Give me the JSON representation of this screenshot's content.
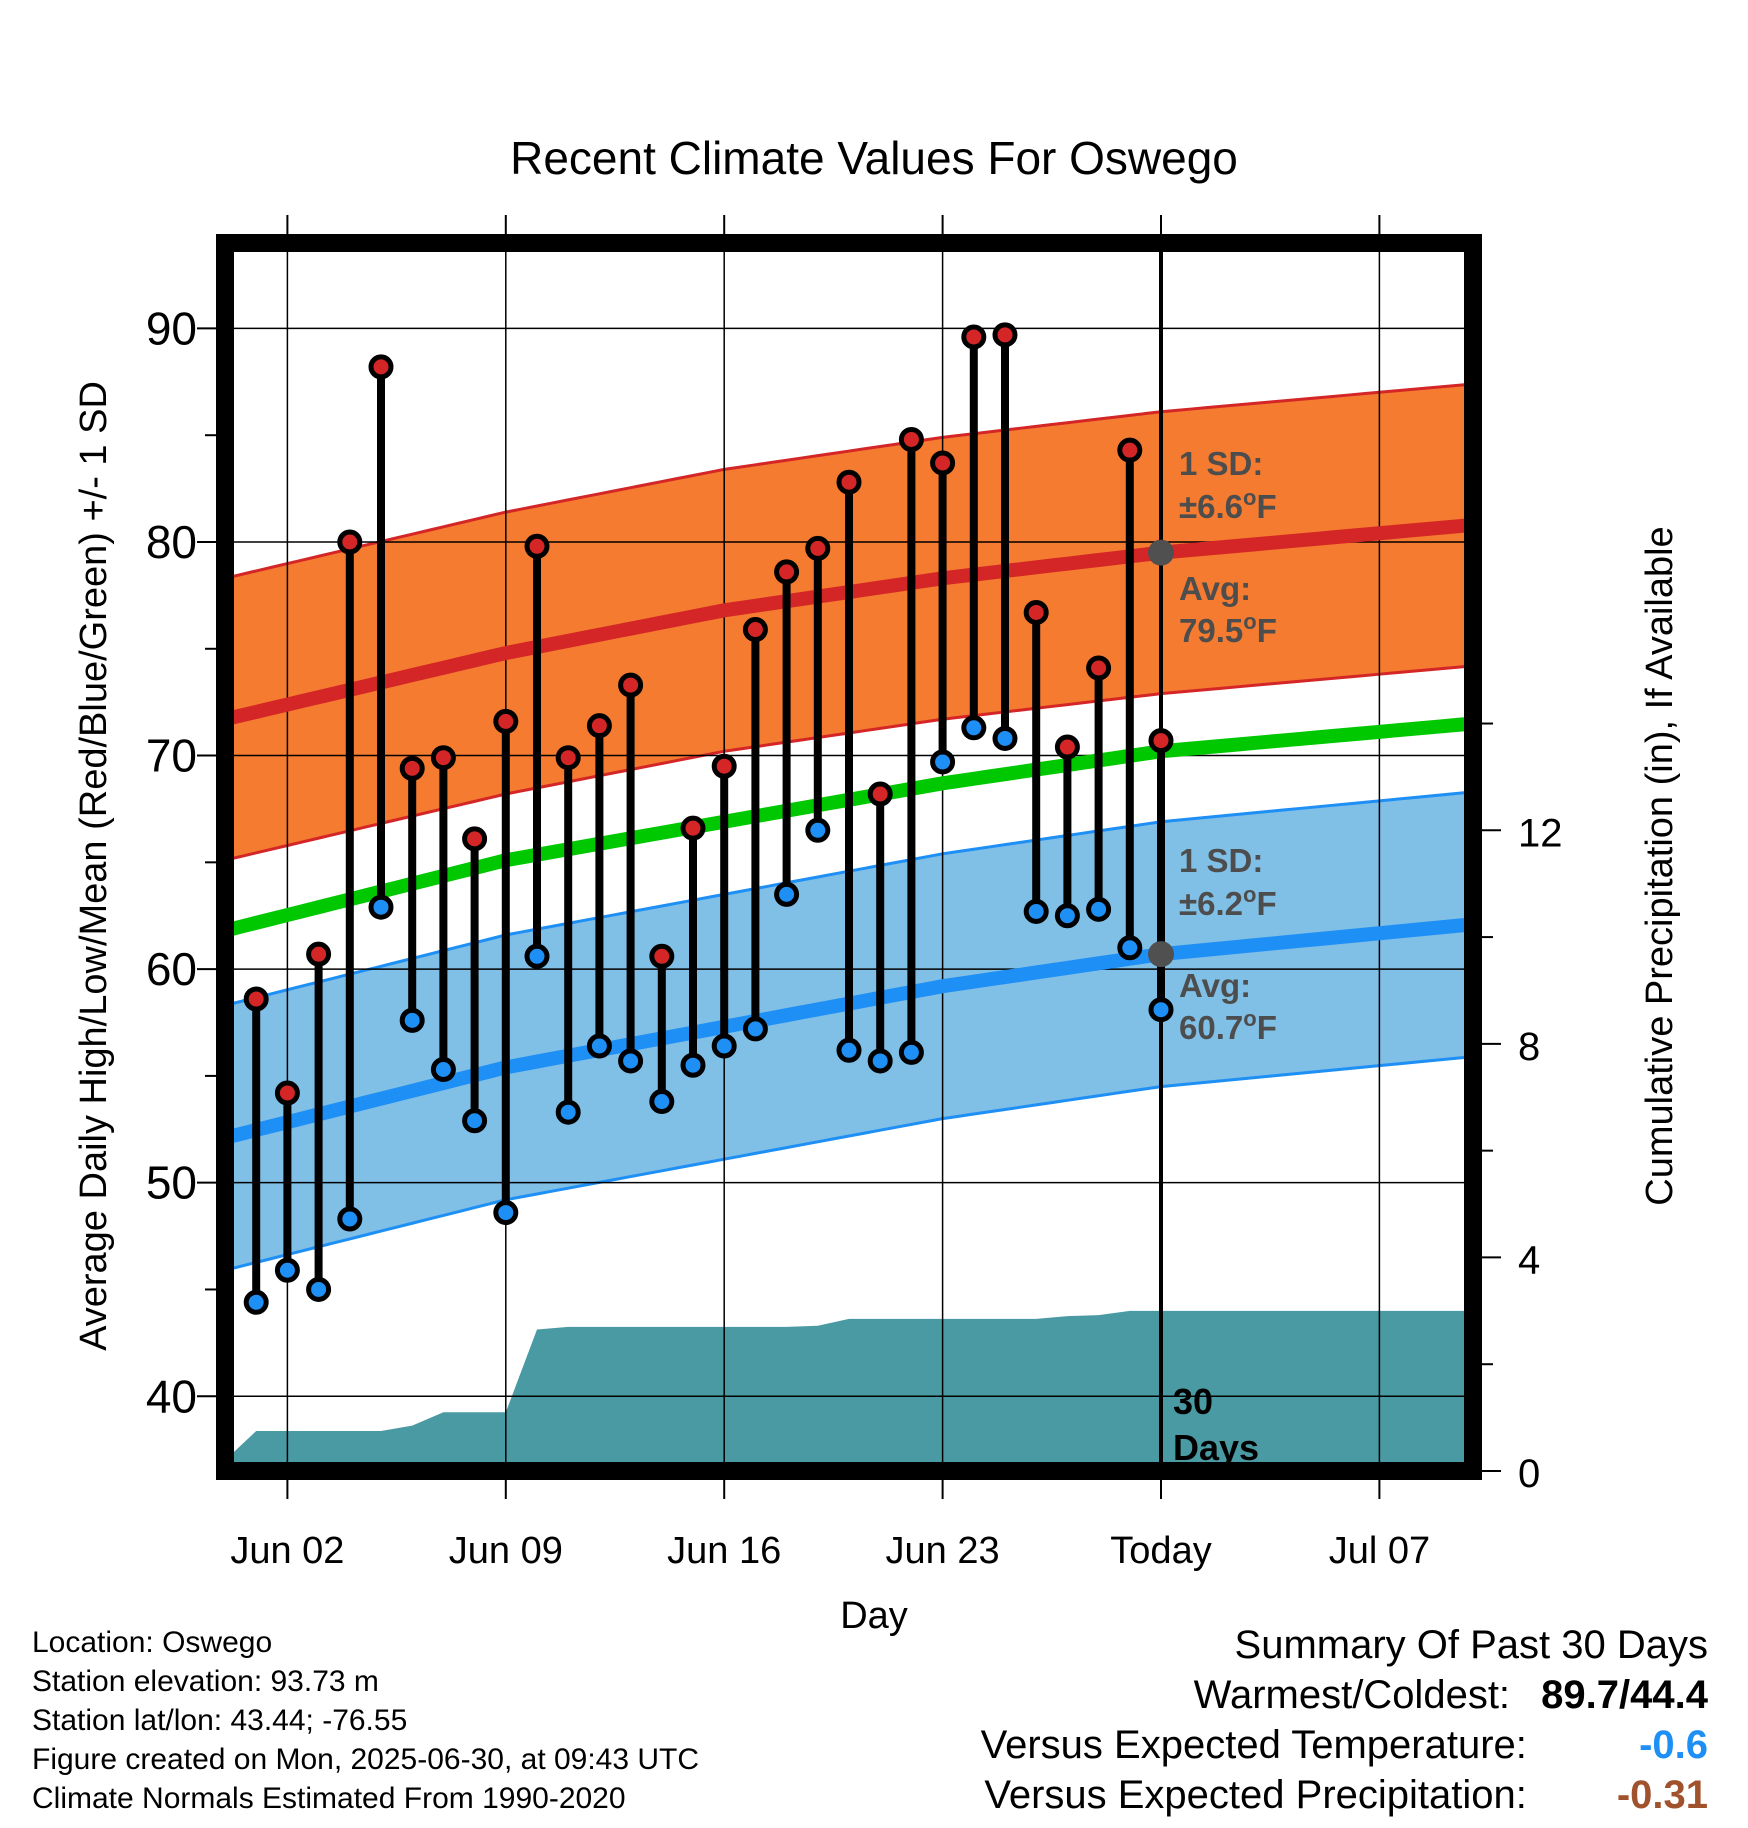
{
  "chart_data": {
    "type": "line",
    "title": "Recent Climate Values For Oswego",
    "xlabel": "Day",
    "ylabel_left": "Average Daily High/Low/Mean (Red/Blue/Green) +/- 1 SD",
    "ylabel_right": "Cumulative Precipitation (in), If Available",
    "x_tick_labels": [
      "Jun 02",
      "Jun 09",
      "Jun 16",
      "Jun 23",
      "Today",
      "Jul 07"
    ],
    "ylim_left": [
      36.5,
      94
    ],
    "y_ticks_left": [
      40,
      50,
      60,
      70,
      80,
      90
    ],
    "ylim_right": [
      0,
      23
    ],
    "y_ticks_right": [
      0,
      4,
      8,
      12
    ],
    "xlim_days": [
      "May 31",
      "Jul 10"
    ],
    "today": "Jun 30",
    "colors": {
      "high_band": "#f47b2f",
      "high_line": "#d42626",
      "mean_line": "#00c800",
      "low_band": "#80bfe6",
      "low_line": "#1e8ff5",
      "precip": "#4a9aa4",
      "high_marker": "#d42626",
      "low_marker": "#1e8ff5",
      "today_marker": "#505050"
    },
    "normals": {
      "days": [
        "May 31",
        "Jun 09",
        "Jun 16",
        "Jun 23",
        "Jun 30",
        "Jul 10"
      ],
      "high_avg": [
        71.7,
        74.8,
        76.8,
        78.3,
        79.5,
        80.8
      ],
      "high_sd": 6.6,
      "mean_avg": [
        61.8,
        65.1,
        66.9,
        68.7,
        70.2,
        71.5
      ],
      "low_avg": [
        52.1,
        55.4,
        57.3,
        59.2,
        60.7,
        62.1
      ],
      "low_sd": 6.2
    },
    "daily": {
      "dates": [
        "Jun 01",
        "Jun 02",
        "Jun 03",
        "Jun 04",
        "Jun 05",
        "Jun 06",
        "Jun 07",
        "Jun 08",
        "Jun 09",
        "Jun 10",
        "Jun 11",
        "Jun 12",
        "Jun 13",
        "Jun 14",
        "Jun 15",
        "Jun 16",
        "Jun 17",
        "Jun 18",
        "Jun 19",
        "Jun 20",
        "Jun 21",
        "Jun 22",
        "Jun 23",
        "Jun 24",
        "Jun 25",
        "Jun 26",
        "Jun 27",
        "Jun 28",
        "Jun 29",
        "Jun 30"
      ],
      "high": [
        58.6,
        54.2,
        60.7,
        80.0,
        88.2,
        69.4,
        69.9,
        66.1,
        71.6,
        79.8,
        69.9,
        71.4,
        73.3,
        60.6,
        66.6,
        69.5,
        75.9,
        78.6,
        79.7,
        82.8,
        68.2,
        84.8,
        83.7,
        89.6,
        89.7,
        76.7,
        70.4,
        74.1,
        84.3,
        70.7
      ],
      "low": [
        44.4,
        45.9,
        45.0,
        48.3,
        62.9,
        57.6,
        55.3,
        52.9,
        48.6,
        60.6,
        53.3,
        56.4,
        55.7,
        53.8,
        55.5,
        56.4,
        57.2,
        63.5,
        66.5,
        56.2,
        55.7,
        56.1,
        69.7,
        71.3,
        70.8,
        62.7,
        62.5,
        62.8,
        61.0,
        58.1
      ]
    },
    "precip": {
      "dates": [
        "May 31",
        "Jun 01",
        "Jun 02",
        "Jun 03",
        "Jun 04",
        "Jun 05",
        "Jun 06",
        "Jun 07",
        "Jun 08",
        "Jun 09",
        "Jun 10",
        "Jun 11",
        "Jun 12",
        "Jun 13",
        "Jun 14",
        "Jun 15",
        "Jun 16",
        "Jun 17",
        "Jun 18",
        "Jun 19",
        "Jun 20",
        "Jun 21",
        "Jun 22",
        "Jun 23",
        "Jun 24",
        "Jun 25",
        "Jun 26",
        "Jun 27",
        "Jun 28",
        "Jun 29",
        "Jun 30",
        "Jul 10"
      ],
      "cumulative": [
        0.2,
        0.75,
        0.75,
        0.75,
        0.75,
        0.75,
        0.85,
        1.1,
        1.1,
        1.1,
        2.65,
        2.7,
        2.7,
        2.7,
        2.7,
        2.7,
        2.7,
        2.7,
        2.7,
        2.72,
        2.85,
        2.85,
        2.85,
        2.85,
        2.85,
        2.85,
        2.85,
        2.9,
        2.92,
        3.0,
        3.0,
        3.0
      ]
    },
    "annotations": {
      "high_sd_label": "1 SD:",
      "high_sd_value": "±6.6",
      "high_avg_label": "Avg:",
      "high_avg_value": "79.5",
      "low_sd_label": "1 SD:",
      "low_sd_value": "±6.2",
      "low_avg_label": "Avg:",
      "low_avg_value": "60.7",
      "degree_mark": "o",
      "unit": "F",
      "days_count": "30",
      "days_word": "Days"
    }
  },
  "info": {
    "location": "Location: Oswego",
    "elevation": "Station elevation: 93.73 m",
    "latlon": "Station lat/lon: 43.44; -76.55",
    "created": "Figure created on Mon, 2025-06-30, at 09:43 UTC",
    "normals": "Climate Normals Estimated From 1990-2020"
  },
  "summary": {
    "title": "Summary Of Past 30 Days",
    "warmest_coldest_label": "Warmest/Coldest:",
    "warmest_coldest_value": "89.7/44.4",
    "temp_label": "Versus Expected Temperature:",
    "temp_value": "-0.6",
    "temp_color": "#1e8ff5",
    "precip_label": "Versus Expected Precipitation:",
    "precip_value": "-0.31",
    "precip_color": "#a0522d"
  }
}
